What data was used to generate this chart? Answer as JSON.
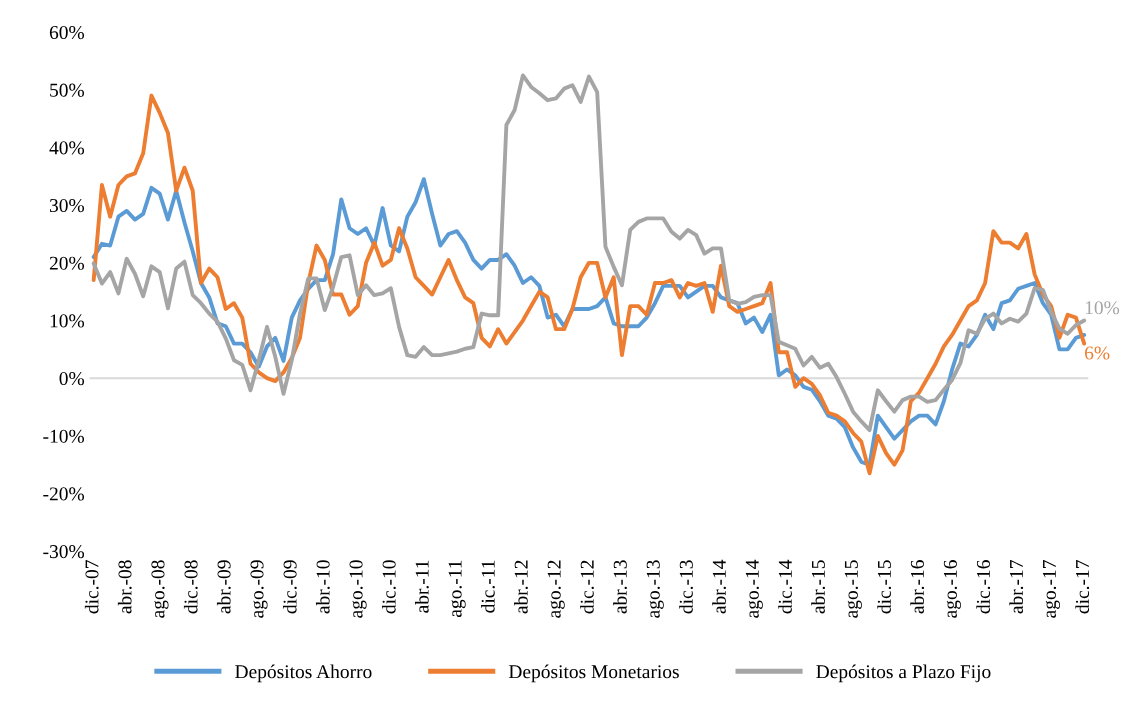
{
  "chart_data": {
    "type": "line",
    "categories": [
      "dic.-07",
      null,
      null,
      null,
      "abr.-08",
      null,
      null,
      null,
      "ago.-08",
      null,
      null,
      null,
      "dic.-08",
      null,
      null,
      null,
      "abr.-09",
      null,
      null,
      null,
      "ago.-09",
      null,
      null,
      null,
      "dic.-09",
      null,
      null,
      null,
      "abr.-10",
      null,
      null,
      null,
      "ago.-10",
      null,
      null,
      null,
      "dic.-10",
      null,
      null,
      null,
      "abr.-11",
      null,
      null,
      null,
      "ago.-11",
      null,
      null,
      null,
      "dic.-11",
      null,
      null,
      null,
      "abr.-12",
      null,
      null,
      null,
      "ago.-12",
      null,
      null,
      null,
      "dic.-12",
      null,
      null,
      null,
      "abr.-13",
      null,
      null,
      null,
      "ago.-13",
      null,
      null,
      null,
      "dic.-13",
      null,
      null,
      null,
      "abr.-14",
      null,
      null,
      null,
      "ago.-14",
      null,
      null,
      null,
      "dic.-14",
      null,
      null,
      null,
      "abr.-15",
      null,
      null,
      null,
      "ago.-15",
      null,
      null,
      null,
      "dic.-15",
      null,
      null,
      null,
      "abr.-16",
      null,
      null,
      null,
      "ago.-16",
      null,
      null,
      null,
      "dic.-16",
      null,
      null,
      null,
      "abr.-17",
      null,
      null,
      null,
      "ago.-17",
      null,
      null,
      null,
      "dic.-17"
    ],
    "series": [
      {
        "name": "Depósitos Ahorro",
        "color": "#5b9bd5",
        "values": [
          21,
          23.3,
          23,
          28,
          29,
          27.5,
          28.5,
          33,
          32,
          27.5,
          32.5,
          27,
          22,
          16.5,
          14,
          9.5,
          9,
          6,
          6,
          4.5,
          2,
          5.5,
          7,
          3,
          10.5,
          13.5,
          15.5,
          17,
          17,
          21.5,
          31,
          26,
          25,
          26,
          23,
          29.5,
          23,
          22,
          28,
          30.5,
          34.5,
          28.5,
          23,
          25,
          25.5,
          23.5,
          20.5,
          19,
          20.5,
          20.5,
          21.5,
          19.5,
          16.5,
          17.5,
          16,
          10.5,
          11,
          9,
          12,
          12,
          12,
          12.5,
          14,
          9.5,
          9,
          9,
          9,
          10.5,
          13,
          16,
          16,
          16,
          14,
          15,
          16,
          16,
          14,
          13.5,
          13,
          9.5,
          10.5,
          8,
          11,
          0.5,
          1.5,
          0.5,
          -1.5,
          -2,
          -4,
          -6.5,
          -7,
          -8.5,
          -12,
          -14.5,
          -15,
          -6.5,
          -8.5,
          -10.5,
          -9,
          -7.5,
          -6.5,
          -6.5,
          -8,
          -4,
          1.5,
          6,
          5.5,
          7.5,
          11,
          8.5,
          13,
          13.5,
          15.5,
          16,
          16.5,
          13,
          11,
          5,
          5,
          7,
          7.5
        ]
      },
      {
        "name": "Depósitos Monetarios",
        "color": "#ed7d31",
        "values": [
          17,
          33.5,
          28,
          33.5,
          35,
          35.5,
          39,
          49,
          46,
          42.5,
          32.5,
          36.5,
          32.5,
          16.5,
          19,
          17.5,
          12,
          13,
          10.5,
          2.5,
          1,
          0,
          -0.5,
          1,
          3.5,
          7,
          16.5,
          23,
          20.5,
          14.5,
          14.5,
          11,
          12.5,
          20,
          23.5,
          19.5,
          20.5,
          26,
          22.5,
          17.5,
          16,
          14.5,
          17.5,
          20.5,
          17,
          14,
          13,
          7,
          5.5,
          8.5,
          6,
          8,
          10,
          12.5,
          15,
          14,
          8.5,
          8.5,
          12,
          17.5,
          20,
          20,
          14,
          17.5,
          4,
          12.5,
          12.5,
          11,
          16.5,
          16.5,
          17,
          14,
          16.5,
          16,
          16.5,
          11.5,
          19.5,
          12.5,
          11.5,
          12,
          12.5,
          13,
          16.5,
          4.5,
          4.5,
          -1.5,
          0,
          -1,
          -3,
          -6,
          -6.5,
          -7.5,
          -9.5,
          -11,
          -16.5,
          -10,
          -13,
          -15,
          -12.5,
          -4,
          -2.5,
          0,
          2.5,
          5.5,
          7.5,
          10,
          12.5,
          13.5,
          16.5,
          25.5,
          23.5,
          23.5,
          22.5,
          25,
          18,
          14.5,
          12.5,
          7,
          11,
          10.5,
          6
        ],
        "value_labels": [
          null,
          null,
          null,
          null,
          null,
          null,
          null,
          null,
          null,
          null,
          null,
          null,
          null,
          null,
          null,
          null,
          null,
          null,
          null,
          null,
          null,
          null,
          null,
          null,
          null,
          null,
          null,
          null,
          null,
          null,
          null,
          null,
          null,
          null,
          null,
          null,
          null,
          null,
          null,
          null,
          null,
          null,
          null,
          null,
          null,
          null,
          null,
          null,
          null,
          null,
          null,
          null,
          null,
          null,
          null,
          null,
          null,
          null,
          null,
          null,
          null,
          null,
          null,
          null,
          null,
          null,
          null,
          null,
          null,
          null,
          null,
          null,
          null,
          null,
          null,
          null,
          null,
          null,
          null,
          null,
          null,
          null,
          null,
          null,
          null,
          null,
          null,
          null,
          null,
          null,
          null,
          null,
          null,
          null,
          null,
          null,
          null,
          null,
          null,
          null,
          null,
          null,
          null,
          null,
          null,
          null,
          null,
          null,
          null,
          null,
          null,
          null,
          null,
          null,
          null,
          null,
          null,
          null,
          null,
          null,
          "6%"
        ]
      },
      {
        "name": "Depósitos a Plazo Fijo",
        "color": "#a5a5a5",
        "values": [
          19.9,
          16.4,
          18.4,
          14.7,
          20.7,
          18.1,
          14.2,
          19.4,
          18.4,
          12.1,
          19,
          20.2,
          14.4,
          13,
          11.2,
          9.8,
          6.9,
          3.1,
          2.3,
          -2.1,
          3.1,
          8.9,
          3.7,
          -2.7,
          3.1,
          11.2,
          17.3,
          17.3,
          11.8,
          15.8,
          21,
          21.3,
          14.4,
          16.1,
          14.4,
          14.7,
          15.6,
          8.9,
          4,
          3.7,
          5.4,
          4,
          4,
          4.3,
          4.6,
          5.1,
          5.4,
          11.2,
          10.9,
          10.9,
          43.9,
          46.5,
          52.5,
          50.5,
          49.4,
          48.2,
          48.5,
          50.2,
          50.8,
          47.9,
          52.3,
          49.6,
          22.8,
          19.3,
          16.1,
          25.7,
          27.1,
          27.7,
          27.7,
          27.7,
          25.4,
          24.2,
          25.7,
          24.8,
          21.6,
          22.5,
          22.5,
          13.5,
          12.9,
          13.2,
          14.1,
          14.4,
          14.4,
          6.3,
          5.7,
          5.1,
          2.2,
          3.7,
          1.8,
          2.5,
          0.2,
          -2.7,
          -5.8,
          -7.5,
          -9,
          -2.1,
          -4,
          -5.8,
          -3.8,
          -3.2,
          -3.2,
          -4.1,
          -3.8,
          -2,
          -0.3,
          2.6,
          8.3,
          7.7,
          10.3,
          11.2,
          9.5,
          10.3,
          9.8,
          11.2,
          15.6,
          15.3,
          11.5,
          8.6,
          7.7,
          9.2,
          10
        ],
        "value_labels": [
          null,
          null,
          null,
          null,
          null,
          null,
          null,
          null,
          null,
          null,
          null,
          null,
          null,
          null,
          null,
          null,
          null,
          null,
          null,
          null,
          null,
          null,
          null,
          null,
          null,
          null,
          null,
          null,
          null,
          null,
          null,
          null,
          null,
          null,
          null,
          null,
          null,
          null,
          null,
          null,
          null,
          null,
          null,
          null,
          null,
          null,
          null,
          null,
          null,
          null,
          null,
          null,
          null,
          null,
          null,
          null,
          null,
          null,
          null,
          null,
          null,
          null,
          null,
          null,
          null,
          null,
          null,
          null,
          null,
          null,
          null,
          null,
          null,
          null,
          null,
          null,
          null,
          null,
          null,
          null,
          null,
          null,
          null,
          null,
          null,
          null,
          null,
          null,
          null,
          null,
          null,
          null,
          null,
          null,
          null,
          null,
          null,
          null,
          null,
          null,
          null,
          null,
          null,
          null,
          null,
          null,
          null,
          null,
          null,
          null,
          null,
          null,
          null,
          null,
          null,
          null,
          null,
          null,
          null,
          null,
          "10%"
        ]
      }
    ],
    "ylim": [
      -30,
      60
    ],
    "yticks": [
      {
        "value": -30,
        "label": "-30%"
      },
      {
        "value": -20,
        "label": "-20%"
      },
      {
        "value": -10,
        "label": "-10%"
      },
      {
        "value": 0,
        "label": "0%"
      },
      {
        "value": 10,
        "label": "10%"
      },
      {
        "value": 20,
        "label": "20%"
      },
      {
        "value": 30,
        "label": "30%"
      },
      {
        "value": 40,
        "label": "40%"
      },
      {
        "value": 50,
        "label": "50%"
      },
      {
        "value": 60,
        "label": "60%"
      }
    ],
    "ref_lines": [
      {
        "axis": "y",
        "value": 0,
        "color": "#d9d9d9"
      }
    ],
    "grid": false,
    "legend": "bottom",
    "marker": "none",
    "line_style": "solid"
  }
}
